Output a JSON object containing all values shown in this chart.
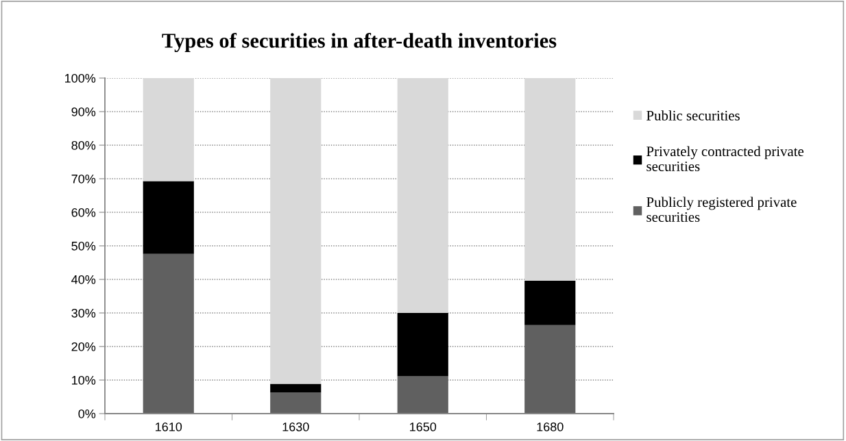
{
  "chart_data": {
    "type": "bar",
    "title": "Types of securities in after-death inventories",
    "stacked": true,
    "categories": [
      "1610",
      "1630",
      "1650",
      "1680"
    ],
    "series": [
      {
        "name": "Publicly registered private securities",
        "color": "#606060",
        "values": [
          47.6,
          6.3,
          11.1,
          26.4
        ]
      },
      {
        "name": "Privately contracted private securities",
        "color": "#000000",
        "values": [
          21.7,
          2.6,
          18.9,
          13.2
        ]
      },
      {
        "name": "Public securities",
        "color": "#d9d9d9",
        "values": [
          30.7,
          91.1,
          70.0,
          60.4
        ]
      }
    ],
    "ylim": [
      0,
      100
    ],
    "yticks": [
      {
        "value": 0,
        "label": "0%"
      },
      {
        "value": 10,
        "label": "10%"
      },
      {
        "value": 20,
        "label": "20%"
      },
      {
        "value": 30,
        "label": "30%"
      },
      {
        "value": 40,
        "label": "40%"
      },
      {
        "value": 50,
        "label": "50%"
      },
      {
        "value": 60,
        "label": "60%"
      },
      {
        "value": 70,
        "label": "70%"
      },
      {
        "value": 80,
        "label": "80%"
      },
      {
        "value": 90,
        "label": "90%"
      },
      {
        "value": 100,
        "label": "100%"
      }
    ],
    "grid": "y",
    "legend": "right"
  }
}
